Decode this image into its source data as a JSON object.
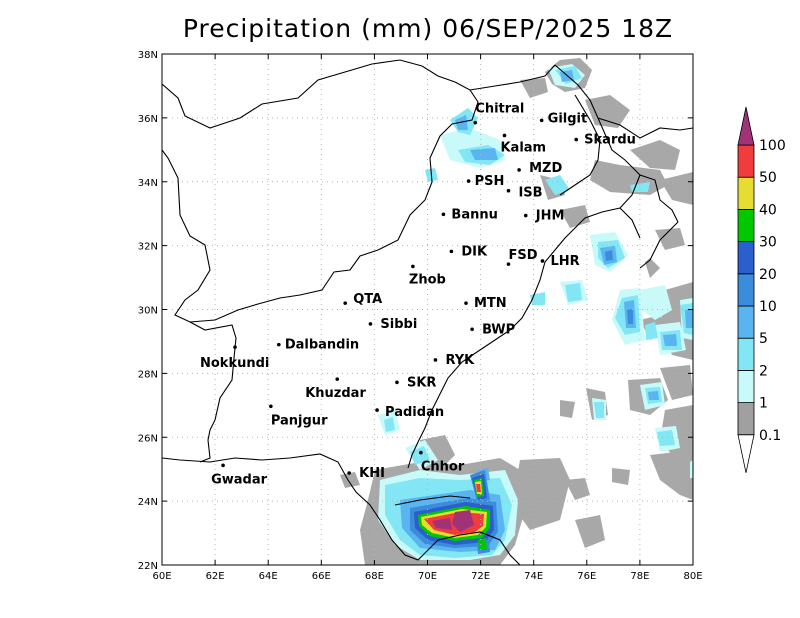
{
  "title": "Precipitation (mm) 06/SEP/2025 18Z",
  "axes": {
    "lon_ticks": [
      "60E",
      "62E",
      "64E",
      "66E",
      "68E",
      "70E",
      "72E",
      "74E",
      "76E",
      "78E",
      "80E"
    ],
    "lat_ticks": [
      "38N",
      "36N",
      "34N",
      "32N",
      "30N",
      "28N",
      "26N",
      "24N",
      "22N"
    ],
    "lon_range": [
      60,
      80
    ],
    "lat_range": [
      22,
      38
    ],
    "grid": "dotted"
  },
  "colorbar": {
    "levels": [
      "0.1",
      "1",
      "2",
      "5",
      "10",
      "20",
      "30",
      "40",
      "50",
      "100"
    ],
    "colors": [
      "#a0a0a0",
      "#c8fafa",
      "#82e6f5",
      "#5ab4f0",
      "#3c8cdc",
      "#2a5fcd",
      "#00c800",
      "#e6dc32",
      "#f03c3c",
      "#a03278"
    ]
  },
  "cities": [
    {
      "name": "Chitral",
      "lon": 71.8,
      "lat": 35.85
    },
    {
      "name": "Gilgit",
      "lon": 74.3,
      "lat": 35.92
    },
    {
      "name": "Kalam",
      "lon": 72.9,
      "lat": 35.45
    },
    {
      "name": "Skardu",
      "lon": 75.6,
      "lat": 35.32
    },
    {
      "name": "MZD",
      "lon": 73.45,
      "lat": 34.37
    },
    {
      "name": "PSH",
      "lon": 71.55,
      "lat": 34.02
    },
    {
      "name": "ISB",
      "lon": 73.05,
      "lat": 33.72
    },
    {
      "name": "JHM",
      "lon": 73.7,
      "lat": 32.94
    },
    {
      "name": "Bannu",
      "lon": 70.6,
      "lat": 32.98
    },
    {
      "name": "DIK",
      "lon": 70.9,
      "lat": 31.82
    },
    {
      "name": "FSD",
      "lon": 73.05,
      "lat": 31.42
    },
    {
      "name": "LHR",
      "lon": 74.33,
      "lat": 31.52
    },
    {
      "name": "Zhob",
      "lon": 69.45,
      "lat": 31.35
    },
    {
      "name": "QTA",
      "lon": 66.9,
      "lat": 30.2
    },
    {
      "name": "MTN",
      "lon": 71.45,
      "lat": 30.2
    },
    {
      "name": "Sibbi",
      "lon": 67.85,
      "lat": 29.55
    },
    {
      "name": "BWP",
      "lon": 71.68,
      "lat": 29.38
    },
    {
      "name": "Nokkundi",
      "lon": 62.75,
      "lat": 28.82
    },
    {
      "name": "Dalbandin",
      "lon": 64.4,
      "lat": 28.9
    },
    {
      "name": "RYK",
      "lon": 70.3,
      "lat": 28.42
    },
    {
      "name": "Khuzdar",
      "lon": 66.6,
      "lat": 27.82
    },
    {
      "name": "SKR",
      "lon": 68.85,
      "lat": 27.72
    },
    {
      "name": "Panjgur",
      "lon": 64.1,
      "lat": 26.97
    },
    {
      "name": "Padidan",
      "lon": 68.1,
      "lat": 26.85
    },
    {
      "name": "Chhor",
      "lon": 69.75,
      "lat": 25.52
    },
    {
      "name": "Gwadar",
      "lon": 62.3,
      "lat": 25.12
    },
    {
      "name": "KHI",
      "lon": 67.05,
      "lat": 24.88
    }
  ]
}
